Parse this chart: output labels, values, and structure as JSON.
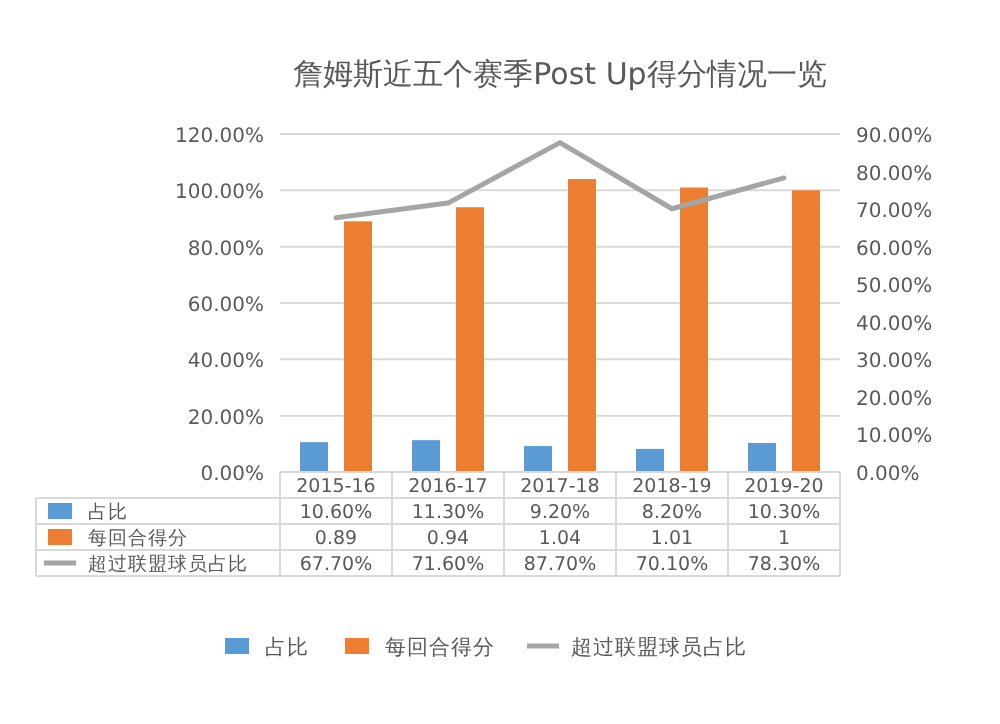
{
  "chart_data": {
    "type": "bar",
    "title": "詹姆斯近五个赛季Post Up得分情况一览",
    "categories": [
      "2015-16",
      "2016-17",
      "2017-18",
      "2018-19",
      "2019-20"
    ],
    "series": [
      {
        "name": "占比",
        "color": "#5b9bd5",
        "values": [
          0.106,
          0.113,
          0.092,
          0.082,
          0.103
        ],
        "value_labels": [
          "10.60%",
          "11.30%",
          "9.20%",
          "8.20%",
          "10.30%"
        ]
      },
      {
        "name": "每回合得分",
        "color": "#ed7d31",
        "values": [
          0.89,
          0.94,
          1.04,
          1.01,
          1
        ],
        "value_labels": [
          "0.89",
          "0.94",
          "1.04",
          "1.01",
          "1"
        ]
      },
      {
        "name": "超过联盟球员占比",
        "color": "#a5a5a5",
        "type": "line",
        "axis": "y2",
        "values": [
          0.677,
          0.716,
          0.877,
          0.701,
          0.783
        ],
        "value_labels": [
          "67.70%",
          "71.60%",
          "87.70%",
          "70.10%",
          "78.30%"
        ]
      }
    ],
    "ylim": [
      0,
      1.2
    ],
    "yticks": [
      {
        "value": 0,
        "label": "0.00%"
      },
      {
        "value": 0.2,
        "label": "20.00%"
      },
      {
        "value": 0.4,
        "label": "40.00%"
      },
      {
        "value": 0.6,
        "label": "60.00%"
      },
      {
        "value": 0.8,
        "label": "80.00%"
      },
      {
        "value": 1,
        "label": "100.00%"
      },
      {
        "value": 1.2,
        "label": "120.00%"
      }
    ],
    "y2lim": [
      0,
      0.9
    ],
    "y2ticks": [
      {
        "value": 0,
        "label": "0.00%"
      },
      {
        "value": 0.1,
        "label": "10.00%"
      },
      {
        "value": 0.2,
        "label": "20.00%"
      },
      {
        "value": 0.3,
        "label": "30.00%"
      },
      {
        "value": 0.4,
        "label": "40.00%"
      },
      {
        "value": 0.5,
        "label": "50.00%"
      },
      {
        "value": 0.6,
        "label": "60.00%"
      },
      {
        "value": 0.7,
        "label": "70.00%"
      },
      {
        "value": 0.8,
        "label": "80.00%"
      },
      {
        "value": 0.9,
        "label": "90.00%"
      }
    ],
    "grid": "y",
    "legend": "bottom"
  }
}
